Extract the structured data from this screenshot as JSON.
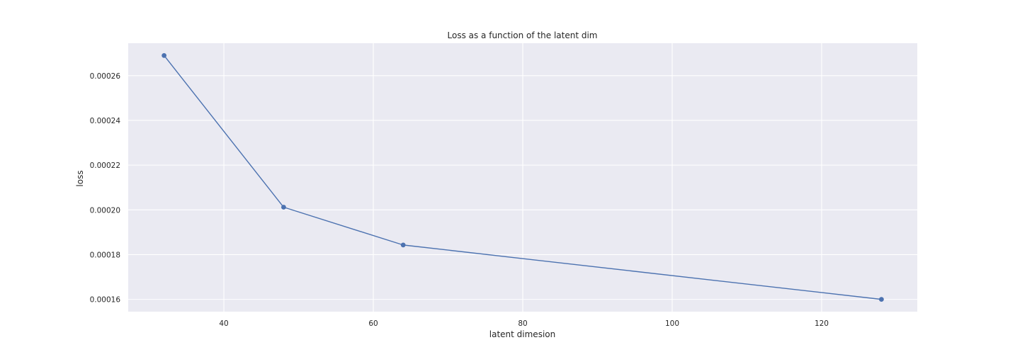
{
  "chart_data": {
    "type": "line",
    "title": "Loss as a function of the latent dim",
    "xlabel": "latent dimesion",
    "ylabel": "loss",
    "x": [
      32,
      48,
      64,
      128
    ],
    "series": [
      {
        "values": [
          0.000269,
          0.0002012,
          0.0001843,
          0.00016
        ],
        "color": "#4c72b0",
        "marker": "circle"
      }
    ],
    "xlim": [
      27.2,
      132.8
    ],
    "ylim": [
      0.0001545,
      0.0002745
    ],
    "xticks": [
      40,
      60,
      80,
      100,
      120
    ],
    "xtick_labels": [
      "40",
      "60",
      "80",
      "100",
      "120"
    ],
    "yticks": [
      0.00016,
      0.00018,
      0.0002,
      0.00022,
      0.00024,
      0.00026
    ],
    "ytick_labels": [
      "0.00016",
      "0.00018",
      "0.00020",
      "0.00022",
      "0.00024",
      "0.00026"
    ],
    "grid": true,
    "style": {
      "background": "#eaeaf2",
      "grid_color": "#ffffff"
    }
  }
}
